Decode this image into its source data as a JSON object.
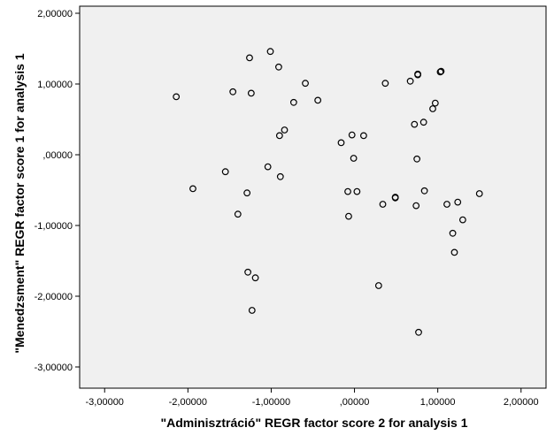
{
  "chart_data": {
    "type": "scatter",
    "xlabel": "\"Adminisztráció\" REGR factor score   2 for analysis 1",
    "ylabel": "\"Menedzsment\" REGR factor score   1 for analysis 1",
    "xlim": [
      -3.3,
      2.3
    ],
    "ylim": [
      -3.3,
      2.1
    ],
    "x_ticks": [
      -3,
      -2,
      -1,
      0,
      1,
      2
    ],
    "y_ticks": [
      -3,
      -2,
      -1,
      0,
      1,
      2
    ],
    "x_tick_labels": [
      "-3,00000",
      "-2,00000",
      "-1,00000",
      ",00000",
      "1,00000",
      "2,00000"
    ],
    "y_tick_labels": [
      "-3,00000",
      "-2,00000",
      "-1,00000",
      ",00000",
      "1,00000",
      "2,00000"
    ],
    "grid": false,
    "plot_background": "#f0f0f0",
    "marker_color": "#000000",
    "points": [
      {
        "x": -2.14,
        "y": 0.82
      },
      {
        "x": -1.94,
        "y": -0.48
      },
      {
        "x": -1.55,
        "y": -0.24
      },
      {
        "x": -1.46,
        "y": 0.89
      },
      {
        "x": -1.4,
        "y": -0.84
      },
      {
        "x": -1.29,
        "y": -0.54
      },
      {
        "x": -1.28,
        "y": -1.66
      },
      {
        "x": -1.26,
        "y": 1.37
      },
      {
        "x": -1.24,
        "y": 0.87
      },
      {
        "x": -1.23,
        "y": -2.2
      },
      {
        "x": -1.19,
        "y": -1.74
      },
      {
        "x": -1.04,
        "y": -0.17
      },
      {
        "x": -1.01,
        "y": 1.46
      },
      {
        "x": -0.91,
        "y": 1.24
      },
      {
        "x": -0.9,
        "y": 0.27
      },
      {
        "x": -0.89,
        "y": -0.31
      },
      {
        "x": -0.84,
        "y": 0.35
      },
      {
        "x": -0.73,
        "y": 0.74
      },
      {
        "x": -0.59,
        "y": 1.01
      },
      {
        "x": -0.44,
        "y": 0.77
      },
      {
        "x": -0.16,
        "y": 0.17
      },
      {
        "x": -0.08,
        "y": -0.52
      },
      {
        "x": -0.07,
        "y": -0.87
      },
      {
        "x": -0.03,
        "y": 0.28
      },
      {
        "x": -0.01,
        "y": -0.05
      },
      {
        "x": 0.03,
        "y": -0.52
      },
      {
        "x": 0.11,
        "y": 0.27
      },
      {
        "x": 0.29,
        "y": -1.85
      },
      {
        "x": 0.34,
        "y": -0.7
      },
      {
        "x": 0.37,
        "y": 1.01
      },
      {
        "x": 0.49,
        "y": -0.6
      },
      {
        "x": 0.49,
        "y": -0.61
      },
      {
        "x": 0.67,
        "y": 1.04
      },
      {
        "x": 0.72,
        "y": 0.43
      },
      {
        "x": 0.74,
        "y": -0.72
      },
      {
        "x": 0.75,
        "y": -0.06
      },
      {
        "x": 0.76,
        "y": 1.13
      },
      {
        "x": 0.76,
        "y": 1.14
      },
      {
        "x": 0.77,
        "y": -2.51
      },
      {
        "x": 0.83,
        "y": 0.46
      },
      {
        "x": 0.84,
        "y": -0.51
      },
      {
        "x": 0.94,
        "y": 0.65
      },
      {
        "x": 0.97,
        "y": 0.73
      },
      {
        "x": 1.03,
        "y": 1.17
      },
      {
        "x": 1.04,
        "y": 1.18
      },
      {
        "x": 1.11,
        "y": -0.7
      },
      {
        "x": 1.18,
        "y": -1.11
      },
      {
        "x": 1.2,
        "y": -1.38
      },
      {
        "x": 1.24,
        "y": -0.67
      },
      {
        "x": 1.3,
        "y": -0.92
      },
      {
        "x": 1.5,
        "y": -0.55
      }
    ]
  }
}
